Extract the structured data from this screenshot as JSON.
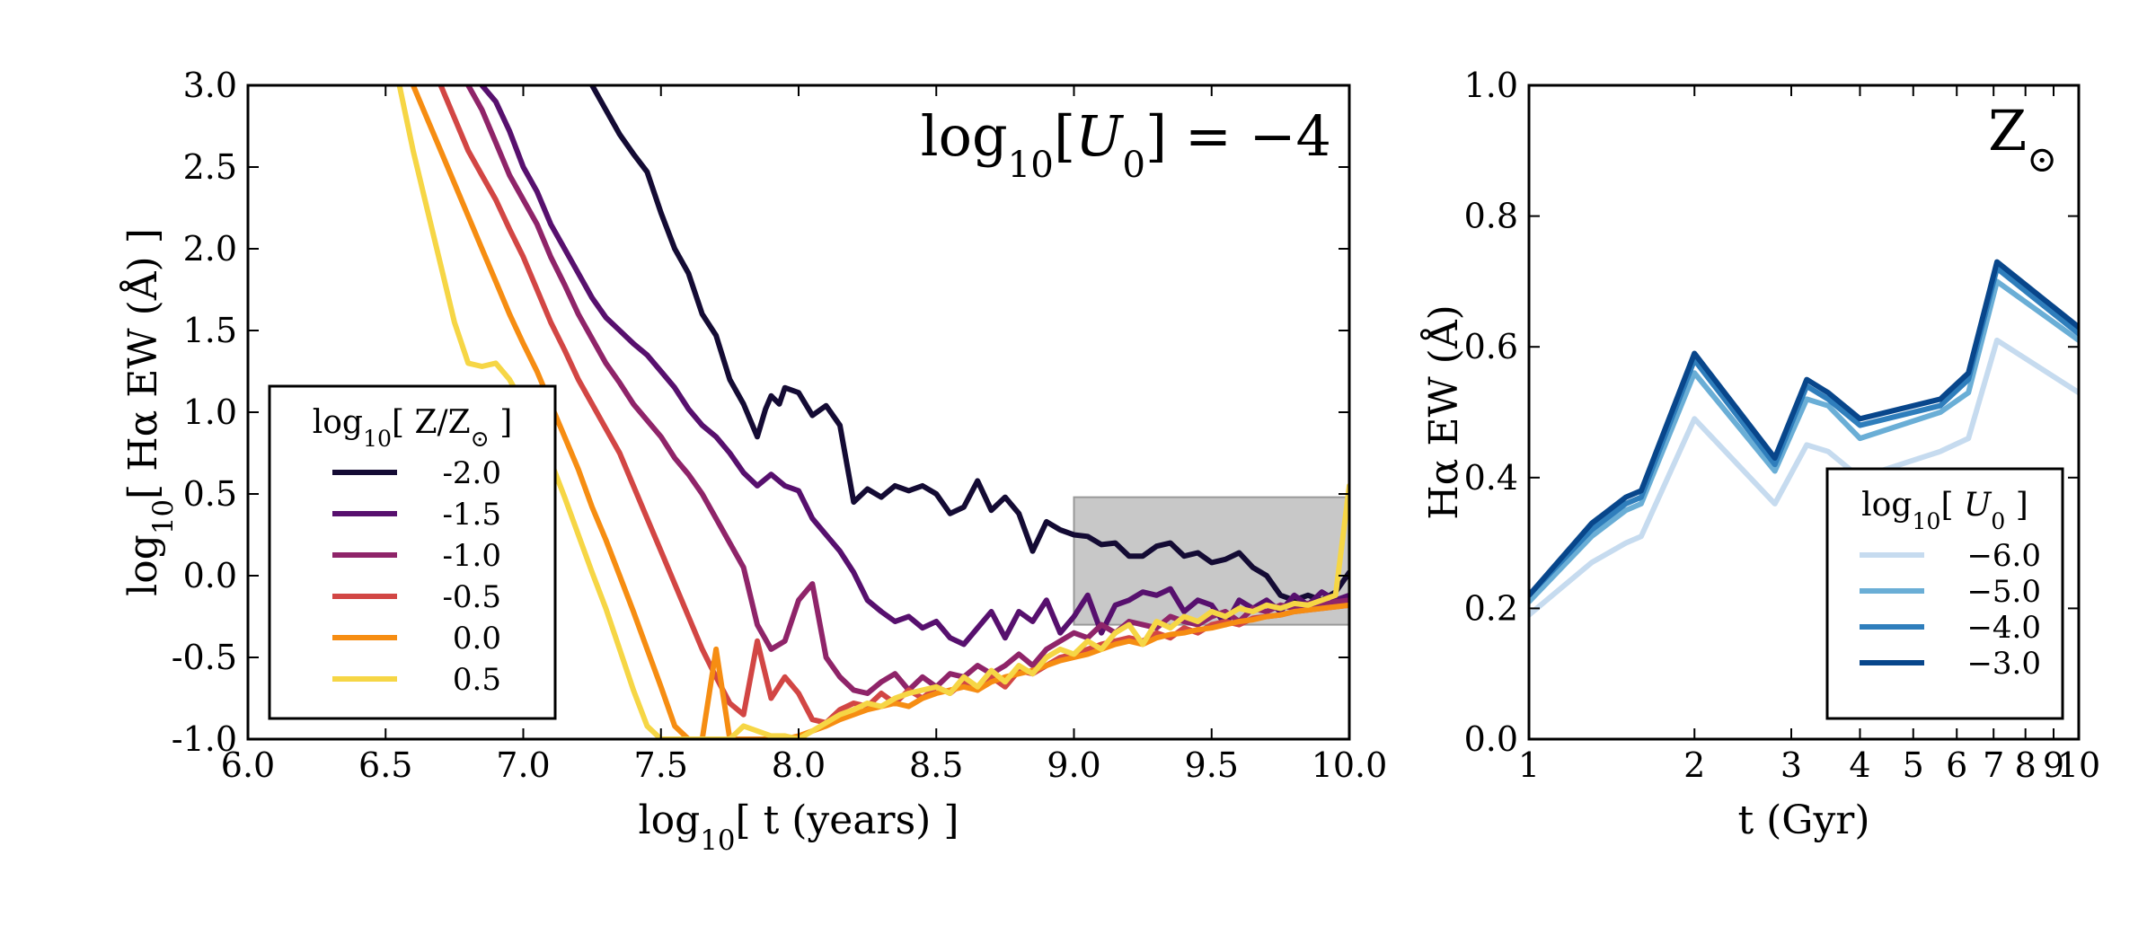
{
  "chart_data": [
    {
      "type": "line",
      "panel": "left",
      "xscale": "linear",
      "xlim": [
        6.0,
        10.0
      ],
      "ylim": [
        -1.0,
        3.0
      ],
      "xlabel": "log10[ t (years) ]",
      "ylabel": "log10[ Hα EW (Å) ]",
      "annotation": "log10[U0] = −4",
      "legend_title": "log10[ Z/Z⊙ ]",
      "legend_position": "lower-left",
      "grid": false,
      "xticks": [
        "6.0",
        "6.5",
        "7.0",
        "7.5",
        "8.0",
        "8.5",
        "9.0",
        "9.5",
        "10.0"
      ],
      "yticks": [
        "-1.0",
        "-0.5",
        "0.0",
        "0.5",
        "1.0",
        "1.5",
        "2.0",
        "2.5",
        "3.0"
      ],
      "shaded_region": {
        "x": [
          9.0,
          10.0
        ],
        "y": [
          -0.3,
          0.48
        ],
        "color": "#c8c8c8"
      },
      "series": [
        {
          "name": "-2.0",
          "color": "#140b34",
          "x": [
            7.25,
            7.3,
            7.35,
            7.4,
            7.45,
            7.5,
            7.55,
            7.6,
            7.65,
            7.7,
            7.75,
            7.8,
            7.85,
            7.88,
            7.9,
            7.93,
            7.95,
            8.0,
            8.05,
            8.1,
            8.15,
            8.2,
            8.25,
            8.3,
            8.35,
            8.4,
            8.45,
            8.5,
            8.55,
            8.6,
            8.65,
            8.7,
            8.75,
            8.8,
            8.85,
            8.9,
            8.95,
            9.0,
            9.05,
            9.1,
            9.15,
            9.2,
            9.25,
            9.3,
            9.35,
            9.4,
            9.45,
            9.5,
            9.55,
            9.6,
            9.65,
            9.7,
            9.75,
            9.8,
            9.85,
            9.9,
            9.95,
            10.0
          ],
          "y": [
            3.0,
            2.85,
            2.7,
            2.58,
            2.47,
            2.22,
            2.0,
            1.85,
            1.6,
            1.47,
            1.2,
            1.05,
            0.85,
            1.02,
            1.1,
            1.05,
            1.15,
            1.12,
            0.98,
            1.04,
            0.92,
            0.45,
            0.53,
            0.48,
            0.55,
            0.52,
            0.55,
            0.5,
            0.38,
            0.42,
            0.58,
            0.4,
            0.48,
            0.38,
            0.15,
            0.33,
            0.28,
            0.25,
            0.24,
            0.19,
            0.2,
            0.12,
            0.12,
            0.18,
            0.2,
            0.12,
            0.14,
            0.08,
            0.1,
            0.14,
            0.05,
            0.0,
            -0.12,
            -0.15,
            -0.12,
            -0.15,
            -0.1,
            0.02
          ]
        },
        {
          "name": "-1.5",
          "color": "#57106e",
          "x": [
            6.85,
            6.9,
            6.95,
            7.0,
            7.05,
            7.1,
            7.15,
            7.2,
            7.25,
            7.3,
            7.35,
            7.4,
            7.45,
            7.5,
            7.55,
            7.6,
            7.65,
            7.7,
            7.75,
            7.8,
            7.85,
            7.9,
            7.95,
            8.0,
            8.05,
            8.1,
            8.15,
            8.2,
            8.25,
            8.3,
            8.35,
            8.4,
            8.45,
            8.5,
            8.55,
            8.6,
            8.65,
            8.7,
            8.75,
            8.8,
            8.85,
            8.9,
            8.95,
            9.0,
            9.05,
            9.1,
            9.15,
            9.2,
            9.25,
            9.3,
            9.35,
            9.4,
            9.45,
            9.5,
            9.55,
            9.6,
            9.65,
            9.7,
            9.75,
            9.8,
            9.85,
            9.9,
            9.95,
            10.0
          ],
          "y": [
            3.0,
            2.9,
            2.72,
            2.5,
            2.35,
            2.15,
            2.0,
            1.85,
            1.7,
            1.58,
            1.5,
            1.42,
            1.35,
            1.25,
            1.15,
            1.02,
            0.92,
            0.85,
            0.75,
            0.63,
            0.55,
            0.62,
            0.55,
            0.52,
            0.35,
            0.25,
            0.15,
            0.02,
            -0.15,
            -0.22,
            -0.28,
            -0.25,
            -0.32,
            -0.28,
            -0.38,
            -0.42,
            -0.32,
            -0.22,
            -0.38,
            -0.22,
            -0.28,
            -0.15,
            -0.35,
            -0.25,
            -0.12,
            -0.35,
            -0.18,
            -0.15,
            -0.1,
            -0.12,
            -0.08,
            -0.22,
            -0.15,
            -0.18,
            -0.3,
            -0.15,
            -0.2,
            -0.15,
            -0.22,
            -0.12,
            -0.18,
            -0.1,
            -0.15,
            -0.12
          ]
        },
        {
          "name": "-1.0",
          "color": "#8f2469",
          "x": [
            6.8,
            6.85,
            6.9,
            6.95,
            7.0,
            7.05,
            7.1,
            7.15,
            7.2,
            7.25,
            7.3,
            7.35,
            7.4,
            7.45,
            7.5,
            7.55,
            7.6,
            7.65,
            7.7,
            7.75,
            7.8,
            7.85,
            7.9,
            7.95,
            8.0,
            8.05,
            8.1,
            8.15,
            8.2,
            8.25,
            8.3,
            8.35,
            8.4,
            8.45,
            8.5,
            8.55,
            8.6,
            8.65,
            8.7,
            8.75,
            8.8,
            8.85,
            8.9,
            8.95,
            9.0,
            9.05,
            9.1,
            9.15,
            9.2,
            9.25,
            9.3,
            9.35,
            9.4,
            9.45,
            9.5,
            9.55,
            9.6,
            9.65,
            9.7,
            9.75,
            9.8,
            9.85,
            9.9,
            9.95,
            10.0
          ],
          "y": [
            3.0,
            2.85,
            2.65,
            2.45,
            2.3,
            2.15,
            1.95,
            1.78,
            1.6,
            1.45,
            1.3,
            1.18,
            1.05,
            0.95,
            0.85,
            0.72,
            0.62,
            0.5,
            0.35,
            0.2,
            0.05,
            -0.3,
            -0.45,
            -0.4,
            -0.15,
            -0.05,
            -0.5,
            -0.62,
            -0.7,
            -0.72,
            -0.65,
            -0.6,
            -0.7,
            -0.62,
            -0.68,
            -0.6,
            -0.62,
            -0.55,
            -0.6,
            -0.55,
            -0.48,
            -0.55,
            -0.45,
            -0.4,
            -0.35,
            -0.38,
            -0.3,
            -0.35,
            -0.28,
            -0.3,
            -0.32,
            -0.25,
            -0.28,
            -0.3,
            -0.25,
            -0.22,
            -0.28,
            -0.2,
            -0.22,
            -0.18,
            -0.2,
            -0.17,
            -0.18,
            -0.16,
            -0.15
          ]
        },
        {
          "name": "-0.5",
          "color": "#d24644",
          "x": [
            6.7,
            6.75,
            6.8,
            6.85,
            6.9,
            6.95,
            7.0,
            7.05,
            7.1,
            7.15,
            7.2,
            7.25,
            7.3,
            7.35,
            7.4,
            7.45,
            7.5,
            7.55,
            7.6,
            7.65,
            7.7,
            7.75,
            7.8,
            7.85,
            7.9,
            7.95,
            8.0,
            8.05,
            8.1,
            8.15,
            8.2,
            8.25,
            8.3,
            8.35,
            8.4,
            8.45,
            8.5,
            8.55,
            8.6,
            8.65,
            8.7,
            8.75,
            8.8,
            8.85,
            8.9,
            8.95,
            9.0,
            9.05,
            9.1,
            9.15,
            9.2,
            9.25,
            9.3,
            9.35,
            9.4,
            9.45,
            9.5,
            9.55,
            9.6,
            9.65,
            9.7,
            9.75,
            9.8,
            9.85,
            9.9,
            9.95,
            10.0
          ],
          "y": [
            3.0,
            2.8,
            2.6,
            2.45,
            2.3,
            2.12,
            1.95,
            1.75,
            1.55,
            1.38,
            1.2,
            1.05,
            0.9,
            0.75,
            0.55,
            0.35,
            0.15,
            -0.05,
            -0.25,
            -0.45,
            -0.62,
            -0.78,
            -0.85,
            -0.4,
            -0.75,
            -0.62,
            -0.72,
            -0.88,
            -0.9,
            -0.82,
            -0.78,
            -0.8,
            -0.72,
            -0.78,
            -0.7,
            -0.75,
            -0.68,
            -0.72,
            -0.65,
            -0.7,
            -0.62,
            -0.68,
            -0.58,
            -0.6,
            -0.55,
            -0.5,
            -0.48,
            -0.45,
            -0.42,
            -0.4,
            -0.38,
            -0.4,
            -0.35,
            -0.38,
            -0.32,
            -0.35,
            -0.3,
            -0.28,
            -0.3,
            -0.26,
            -0.25,
            -0.24,
            -0.22,
            -0.21,
            -0.2,
            -0.19,
            -0.18
          ]
        },
        {
          "name": "0.0",
          "color": "#f68d12",
          "x": [
            6.6,
            6.65,
            6.7,
            6.75,
            6.8,
            6.85,
            6.9,
            6.95,
            7.0,
            7.05,
            7.1,
            7.15,
            7.2,
            7.25,
            7.3,
            7.35,
            7.4,
            7.45,
            7.5,
            7.55,
            7.6,
            7.65,
            7.7,
            7.75,
            7.8,
            7.85,
            7.9,
            7.95,
            8.0,
            8.05,
            8.1,
            8.15,
            8.2,
            8.25,
            8.3,
            8.35,
            8.4,
            8.45,
            8.5,
            8.55,
            8.6,
            8.65,
            8.7,
            8.75,
            8.8,
            8.85,
            8.9,
            8.95,
            9.0,
            9.05,
            9.1,
            9.15,
            9.2,
            9.25,
            9.3,
            9.35,
            9.4,
            9.45,
            9.5,
            9.55,
            9.6,
            9.65,
            9.7,
            9.75,
            9.8,
            9.85,
            9.9,
            9.95,
            10.0
          ],
          "y": [
            3.0,
            2.8,
            2.6,
            2.4,
            2.2,
            2.0,
            1.8,
            1.6,
            1.42,
            1.25,
            1.05,
            0.85,
            0.65,
            0.42,
            0.22,
            0.0,
            -0.22,
            -0.45,
            -0.68,
            -0.92,
            -1.0,
            -1.0,
            -0.45,
            -1.0,
            -1.0,
            -1.0,
            -1.0,
            -1.0,
            -0.98,
            -0.95,
            -0.92,
            -0.88,
            -0.85,
            -0.82,
            -0.8,
            -0.78,
            -0.8,
            -0.75,
            -0.72,
            -0.7,
            -0.68,
            -0.7,
            -0.65,
            -0.62,
            -0.6,
            -0.58,
            -0.55,
            -0.52,
            -0.5,
            -0.48,
            -0.45,
            -0.42,
            -0.4,
            -0.42,
            -0.38,
            -0.36,
            -0.35,
            -0.33,
            -0.32,
            -0.3,
            -0.28,
            -0.27,
            -0.25,
            -0.24,
            -0.22,
            -0.21,
            -0.2,
            -0.19,
            -0.18
          ]
        },
        {
          "name": "0.5",
          "color": "#f6d645",
          "x": [
            6.55,
            6.6,
            6.65,
            6.7,
            6.75,
            6.8,
            6.85,
            6.9,
            6.95,
            7.0,
            7.05,
            7.1,
            7.15,
            7.2,
            7.25,
            7.3,
            7.35,
            7.4,
            7.45,
            7.5,
            7.55,
            7.6,
            7.65,
            7.7,
            7.75,
            7.8,
            7.85,
            7.9,
            7.95,
            8.0,
            8.05,
            8.1,
            8.15,
            8.2,
            8.25,
            8.3,
            8.35,
            8.4,
            8.45,
            8.5,
            8.55,
            8.6,
            8.65,
            8.7,
            8.75,
            8.8,
            8.85,
            8.9,
            8.95,
            9.0,
            9.05,
            9.1,
            9.15,
            9.2,
            9.25,
            9.3,
            9.35,
            9.4,
            9.45,
            9.5,
            9.55,
            9.6,
            9.65,
            9.7,
            9.75,
            9.8,
            9.85,
            9.9,
            9.95,
            10.0
          ],
          "y": [
            3.0,
            2.6,
            2.25,
            1.9,
            1.55,
            1.3,
            1.28,
            1.3,
            1.2,
            1.05,
            0.9,
            0.7,
            0.48,
            0.25,
            0.02,
            -0.2,
            -0.45,
            -0.7,
            -0.92,
            -1.0,
            -1.0,
            -1.0,
            -1.0,
            -1.0,
            -1.0,
            -0.92,
            -0.95,
            -0.98,
            -0.98,
            -1.0,
            -0.95,
            -0.9,
            -0.85,
            -0.82,
            -0.78,
            -0.8,
            -0.75,
            -0.72,
            -0.7,
            -0.68,
            -0.72,
            -0.62,
            -0.68,
            -0.58,
            -0.65,
            -0.55,
            -0.6,
            -0.5,
            -0.45,
            -0.48,
            -0.4,
            -0.45,
            -0.35,
            -0.3,
            -0.42,
            -0.28,
            -0.32,
            -0.25,
            -0.28,
            -0.22,
            -0.25,
            -0.2,
            -0.22,
            -0.18,
            -0.2,
            -0.17,
            -0.18,
            -0.15,
            -0.12,
            0.55
          ]
        }
      ]
    },
    {
      "type": "line",
      "panel": "right",
      "xscale": "log",
      "xlim": [
        1,
        10
      ],
      "ylim": [
        0.0,
        1.0
      ],
      "xlabel": "t (Gyr)",
      "ylabel": "Hα EW (Å)",
      "annotation": "Z⊙",
      "legend_title": "log10[ U0 ]",
      "legend_position": "lower-right",
      "grid": false,
      "xticks": [
        "1",
        "2",
        "3",
        "4",
        "5",
        "6",
        "7",
        "8",
        "9",
        "10"
      ],
      "yticks": [
        "0.0",
        "0.2",
        "0.4",
        "0.6",
        "0.8",
        "1.0"
      ],
      "series": [
        {
          "name": "−6.0",
          "color": "#c6dbef",
          "x": [
            1.0,
            1.3,
            1.5,
            1.6,
            2.0,
            2.8,
            3.2,
            3.5,
            4.0,
            5.6,
            6.3,
            7.1,
            10.0
          ],
          "y": [
            0.19,
            0.27,
            0.3,
            0.31,
            0.49,
            0.36,
            0.45,
            0.44,
            0.4,
            0.44,
            0.46,
            0.61,
            0.53
          ]
        },
        {
          "name": "−5.0",
          "color": "#6aaed6",
          "x": [
            1.0,
            1.3,
            1.5,
            1.6,
            2.0,
            2.8,
            3.2,
            3.5,
            4.0,
            5.6,
            6.3,
            7.1,
            10.0
          ],
          "y": [
            0.21,
            0.31,
            0.35,
            0.36,
            0.56,
            0.41,
            0.52,
            0.51,
            0.46,
            0.5,
            0.53,
            0.7,
            0.61
          ]
        },
        {
          "name": "−4.0",
          "color": "#2f7ebc",
          "x": [
            1.0,
            1.3,
            1.5,
            1.6,
            2.0,
            2.8,
            3.2,
            3.5,
            4.0,
            5.6,
            6.3,
            7.1,
            10.0
          ],
          "y": [
            0.22,
            0.32,
            0.36,
            0.37,
            0.58,
            0.42,
            0.54,
            0.52,
            0.48,
            0.51,
            0.55,
            0.72,
            0.62
          ]
        },
        {
          "name": "−3.0",
          "color": "#08468b",
          "x": [
            1.0,
            1.3,
            1.5,
            1.6,
            2.0,
            2.8,
            3.2,
            3.5,
            4.0,
            5.6,
            6.3,
            7.1,
            10.0
          ],
          "y": [
            0.22,
            0.33,
            0.37,
            0.38,
            0.59,
            0.43,
            0.55,
            0.53,
            0.49,
            0.52,
            0.56,
            0.73,
            0.63
          ]
        }
      ]
    }
  ]
}
